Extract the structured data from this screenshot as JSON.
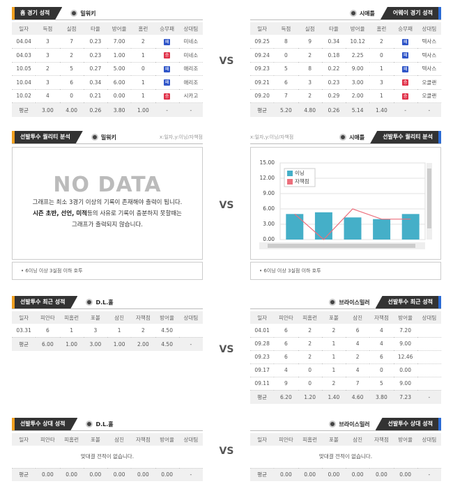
{
  "vs": "VS",
  "home_record": {
    "title": "홈 경기 성적",
    "team": "밀워키",
    "columns": [
      "일자",
      "득점",
      "실점",
      "타율",
      "방어율",
      "홈런",
      "승무패",
      "상대팀"
    ],
    "rows": [
      [
        "04.04",
        "3",
        "7",
        "0.23",
        "7.00",
        "2",
        {
          "label": "패",
          "color": "#2f55c8"
        },
        "미네소"
      ],
      [
        "04.03",
        "3",
        "2",
        "0.23",
        "1.00",
        "1",
        {
          "label": "승",
          "color": "#e0334a"
        },
        "미네소"
      ],
      [
        "10.05",
        "2",
        "5",
        "0.27",
        "5.00",
        "0",
        {
          "label": "패",
          "color": "#2f55c8"
        },
        "애리조"
      ],
      [
        "10.04",
        "3",
        "6",
        "0.34",
        "6.00",
        "1",
        {
          "label": "패",
          "color": "#2f55c8"
        },
        "애리조"
      ],
      [
        "10.02",
        "4",
        "0",
        "0.21",
        "0.00",
        "1",
        {
          "label": "승",
          "color": "#e0334a"
        },
        "시카고"
      ]
    ],
    "average": [
      "평균",
      "3.00",
      "4.00",
      "0.26",
      "3.80",
      "1.00",
      "-",
      "-"
    ]
  },
  "away_record": {
    "title": "어웨이 경기 성적",
    "team": "시애틀",
    "columns": [
      "일자",
      "득점",
      "실점",
      "타율",
      "방어율",
      "홈런",
      "승무패",
      "상대팀"
    ],
    "rows": [
      [
        "09.25",
        "8",
        "9",
        "0.34",
        "10.12",
        "2",
        {
          "label": "패",
          "color": "#2f55c8"
        },
        "텍사스"
      ],
      [
        "09.24",
        "0",
        "2",
        "0.18",
        "2.25",
        "0",
        {
          "label": "패",
          "color": "#2f55c8"
        },
        "텍사스"
      ],
      [
        "09.23",
        "5",
        "8",
        "0.22",
        "9.00",
        "1",
        {
          "label": "패",
          "color": "#2f55c8"
        },
        "텍사스"
      ],
      [
        "09.21",
        "6",
        "3",
        "0.23",
        "3.00",
        "3",
        {
          "label": "승",
          "color": "#e0334a"
        },
        "오클랜"
      ],
      [
        "09.20",
        "7",
        "2",
        "0.29",
        "2.00",
        "1",
        {
          "label": "승",
          "color": "#e0334a"
        },
        "오클랜"
      ]
    ],
    "average": [
      "평균",
      "5.20",
      "4.80",
      "0.26",
      "5.14",
      "1.40",
      "-",
      "-"
    ]
  },
  "quality_left": {
    "title": "선발투수 퀄리티 분석",
    "team": "밀워키",
    "axis_note": "x:일자,y:이닝/자책점",
    "no_data": "NO DATA",
    "message": [
      "그래프는 최소 3경기 이상의 기록이 존재해야 출력이 됩니다.",
      "시즌 초반, 선언, 미적",
      "등의 사유로 기록이 충분하지 못할때는",
      "그래프가 출력되지 않습니다."
    ],
    "footnote": "6이닝 이상 3실점 이하 호투"
  },
  "quality_right": {
    "title": "선발투수 퀄리티 분석",
    "team": "시애틀",
    "axis_note": "x:일자,y:이닝/자책점",
    "footnote": "6이닝 이상 3실점 이하 호투"
  },
  "chart_data": {
    "type": "bar_line",
    "categories": [
      null,
      null,
      null,
      null,
      null
    ],
    "ylim": [
      0,
      15
    ],
    "yticks": [
      {
        "value": 0,
        "label": "0.00"
      },
      {
        "value": 3,
        "label": "3.00"
      },
      {
        "value": 6,
        "label": "6.00"
      },
      {
        "value": 9,
        "label": "9.00"
      },
      {
        "value": 12,
        "label": "12.00"
      },
      {
        "value": 15,
        "label": "15.00"
      }
    ],
    "grid": true,
    "series": [
      {
        "name": "이닝",
        "type": "bar",
        "color": "#45afc8",
        "values": [
          5,
          5.33,
          4.33,
          4,
          5
        ]
      },
      {
        "name": "자책점",
        "type": "line",
        "color": "#ec6f7c",
        "values": [
          5,
          0,
          6,
          4,
          4
        ]
      }
    ]
  },
  "recent_left": {
    "title": "선발투수 최근 성적",
    "team": "D.L.홀",
    "columns": [
      "일자",
      "피안타",
      "피홈런",
      "포볼",
      "삼진",
      "자책점",
      "방어율",
      "상대팀"
    ],
    "rows": [
      [
        "03.31",
        "6",
        "1",
        "3",
        "1",
        "2",
        "4.50",
        null
      ]
    ],
    "average": [
      "평균",
      "6.00",
      "1.00",
      "3.00",
      "1.00",
      "2.00",
      "4.50",
      "-"
    ]
  },
  "recent_right": {
    "title": "선발투수 최근 성적",
    "team": "브라이스밀러",
    "columns": [
      "일자",
      "피안타",
      "피홈런",
      "포볼",
      "삼진",
      "자책점",
      "방어율",
      "상대팀"
    ],
    "rows": [
      [
        "04.01",
        "6",
        "2",
        "2",
        "6",
        "4",
        "7.20",
        null
      ],
      [
        "09.28",
        "6",
        "2",
        "1",
        "4",
        "4",
        "9.00",
        null
      ],
      [
        "09.23",
        "6",
        "2",
        "1",
        "2",
        "6",
        "12.46",
        null
      ],
      [
        "09.17",
        "4",
        "0",
        "1",
        "4",
        "0",
        "0.00",
        null
      ],
      [
        "09.11",
        "9",
        "0",
        "2",
        "7",
        "5",
        "9.00",
        null
      ]
    ],
    "average": [
      "평균",
      "6.20",
      "1.20",
      "1.40",
      "4.60",
      "3.80",
      "7.23",
      "-"
    ]
  },
  "versus_left": {
    "title": "선발투수 상대 성적",
    "team": "D.L.홀",
    "columns": [
      "일자",
      "피안타",
      "피홈런",
      "포볼",
      "삼진",
      "자책점",
      "방어율",
      "상대팀"
    ],
    "message": "맞대결 전적이 없습니다.",
    "average": [
      "평균",
      "0.00",
      "0.00",
      "0.00",
      "0.00",
      "0.00",
      "0.00",
      "-"
    ]
  },
  "versus_right": {
    "title": "선발투수 상대 성적",
    "team": "브라이스밀러",
    "columns": [
      "일자",
      "피안타",
      "피홈런",
      "포볼",
      "삼진",
      "자책점",
      "방어율",
      "상대팀"
    ],
    "message": "맞대결 전적이 없습니다.",
    "average": [
      "평균",
      "0.00",
      "0.00",
      "0.00",
      "0.00",
      "0.00",
      "0.00",
      "-"
    ]
  }
}
